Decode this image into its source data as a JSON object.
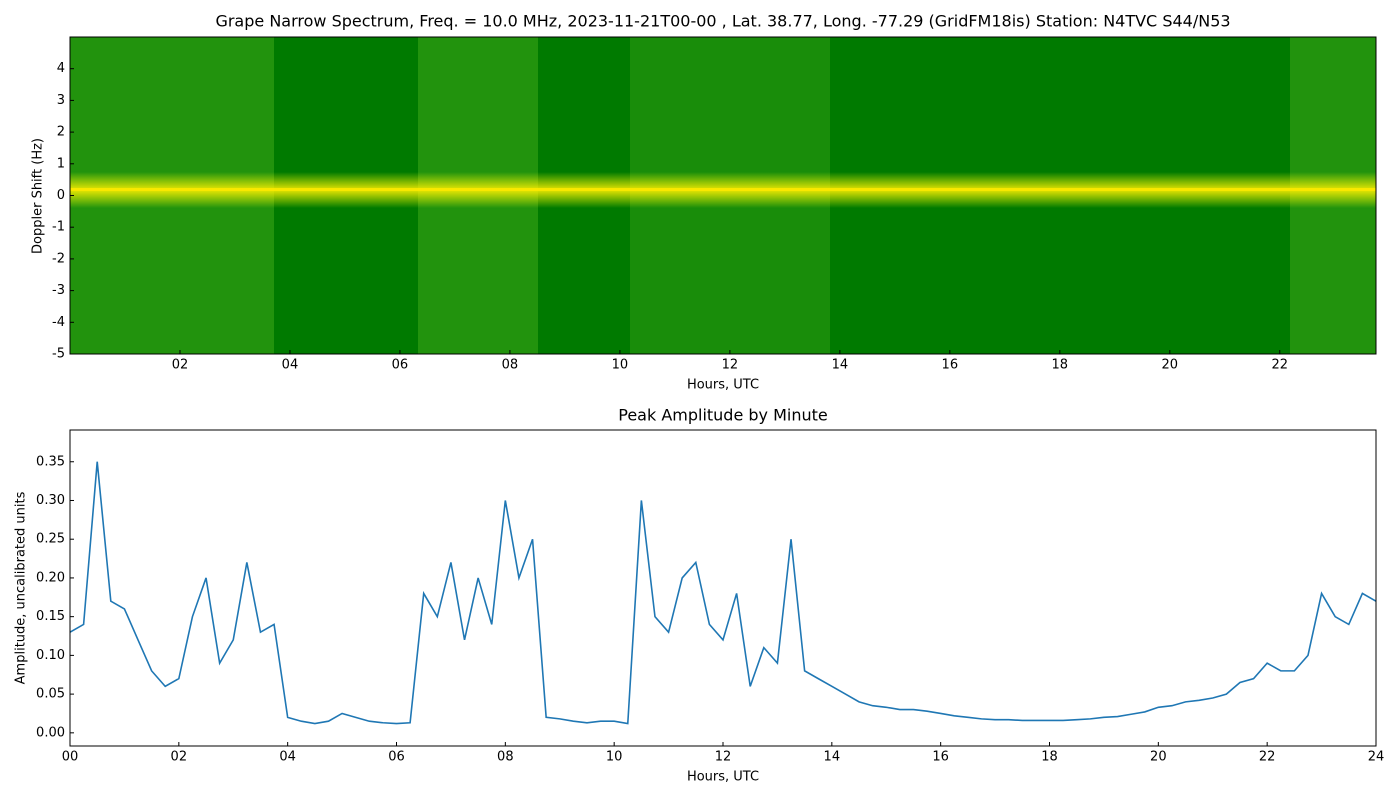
{
  "chart_data": [
    {
      "type": "spectrogram",
      "title": "Grape Narrow Spectrum, Freq. = 10.0 MHz, 2023-11-21T00-00 , Lat.  38.77, Long. -77.29 (GridFM18is) Station: N4TVC S44/N53",
      "x_label": "Hours, UTC",
      "y_label": "Doppler Shift (Hz)",
      "xlim": [
        0,
        23.75
      ],
      "ylim": [
        -5,
        5
      ],
      "xticks": [
        {
          "value": 2,
          "label": "02"
        },
        {
          "value": 4,
          "label": "04"
        },
        {
          "value": 6,
          "label": "06"
        },
        {
          "value": 8,
          "label": "08"
        },
        {
          "value": 10,
          "label": "10"
        },
        {
          "value": 12,
          "label": "12"
        },
        {
          "value": 14,
          "label": "14"
        },
        {
          "value": 16,
          "label": "16"
        },
        {
          "value": 18,
          "label": "18"
        },
        {
          "value": 20,
          "label": "20"
        },
        {
          "value": 22,
          "label": "22"
        }
      ],
      "yticks": [
        -5,
        -4,
        -3,
        -2,
        -1,
        0,
        1,
        2,
        3,
        4
      ]
    },
    {
      "type": "line",
      "title": "Peak Amplitude by Minute",
      "x_label": "Hours, UTC",
      "y_label": "Amplitude, uncalibrated units",
      "color": "#1f77b4",
      "xlim": [
        0,
        24
      ],
      "ylim": [
        -0.017,
        0.391
      ],
      "xticks": [
        {
          "value": 0,
          "label": "00"
        },
        {
          "value": 2,
          "label": "02"
        },
        {
          "value": 4,
          "label": "04"
        },
        {
          "value": 6,
          "label": "06"
        },
        {
          "value": 8,
          "label": "08"
        },
        {
          "value": 10,
          "label": "10"
        },
        {
          "value": 12,
          "label": "12"
        },
        {
          "value": 14,
          "label": "14"
        },
        {
          "value": 16,
          "label": "16"
        },
        {
          "value": 18,
          "label": "18"
        },
        {
          "value": 20,
          "label": "20"
        },
        {
          "value": 22,
          "label": "22"
        },
        {
          "value": 24,
          "label": "24"
        }
      ],
      "yticks": [
        {
          "value": 0,
          "label": "0.00"
        },
        0.05,
        {
          "value": 0.1,
          "label": "0.10"
        },
        0.15,
        {
          "value": 0.2,
          "label": "0.20"
        },
        0.25,
        {
          "value": 0.3,
          "label": "0.30"
        },
        0.35
      ],
      "x": [
        0,
        0.25,
        0.5,
        0.75,
        1,
        1.25,
        1.5,
        1.75,
        2,
        2.25,
        2.5,
        2.75,
        3,
        3.25,
        3.5,
        3.75,
        4,
        4.25,
        4.5,
        4.75,
        5,
        5.25,
        5.5,
        5.75,
        6,
        6.25,
        6.5,
        6.75,
        7,
        7.25,
        7.5,
        7.75,
        8,
        8.25,
        8.5,
        8.75,
        9,
        9.25,
        9.5,
        9.75,
        10,
        10.25,
        10.5,
        10.75,
        11,
        11.25,
        11.5,
        11.75,
        12,
        12.25,
        12.5,
        12.75,
        13,
        13.25,
        13.5,
        13.75,
        14,
        14.25,
        14.5,
        14.75,
        15,
        15.25,
        15.5,
        15.75,
        16,
        16.25,
        16.5,
        16.75,
        17,
        17.25,
        17.5,
        17.75,
        18,
        18.25,
        18.5,
        18.75,
        19,
        19.25,
        19.5,
        19.75,
        20,
        20.25,
        20.5,
        20.75,
        21,
        21.25,
        21.5,
        21.75,
        22,
        22.25,
        22.5,
        22.75,
        23,
        23.25,
        23.5,
        23.75,
        24
      ],
      "values": [
        0.13,
        0.14,
        0.35,
        0.17,
        0.16,
        0.12,
        0.08,
        0.06,
        0.07,
        0.15,
        0.2,
        0.09,
        0.12,
        0.22,
        0.13,
        0.14,
        0.02,
        0.015,
        0.012,
        0.015,
        0.025,
        0.02,
        0.015,
        0.013,
        0.012,
        0.013,
        0.18,
        0.15,
        0.22,
        0.12,
        0.2,
        0.14,
        0.3,
        0.2,
        0.25,
        0.02,
        0.018,
        0.015,
        0.013,
        0.015,
        0.015,
        0.012,
        0.3,
        0.15,
        0.13,
        0.2,
        0.22,
        0.14,
        0.12,
        0.18,
        0.06,
        0.11,
        0.09,
        0.25,
        0.08,
        0.07,
        0.06,
        0.05,
        0.04,
        0.035,
        0.033,
        0.03,
        0.03,
        0.028,
        0.025,
        0.022,
        0.02,
        0.018,
        0.017,
        0.017,
        0.016,
        0.016,
        0.016,
        0.016,
        0.017,
        0.018,
        0.02,
        0.021,
        0.024,
        0.027,
        0.033,
        0.035,
        0.04,
        0.042,
        0.045,
        0.05,
        0.065,
        0.07,
        0.09,
        0.08,
        0.08,
        0.1,
        0.18,
        0.15,
        0.14,
        0.18,
        0.17
      ]
    }
  ]
}
